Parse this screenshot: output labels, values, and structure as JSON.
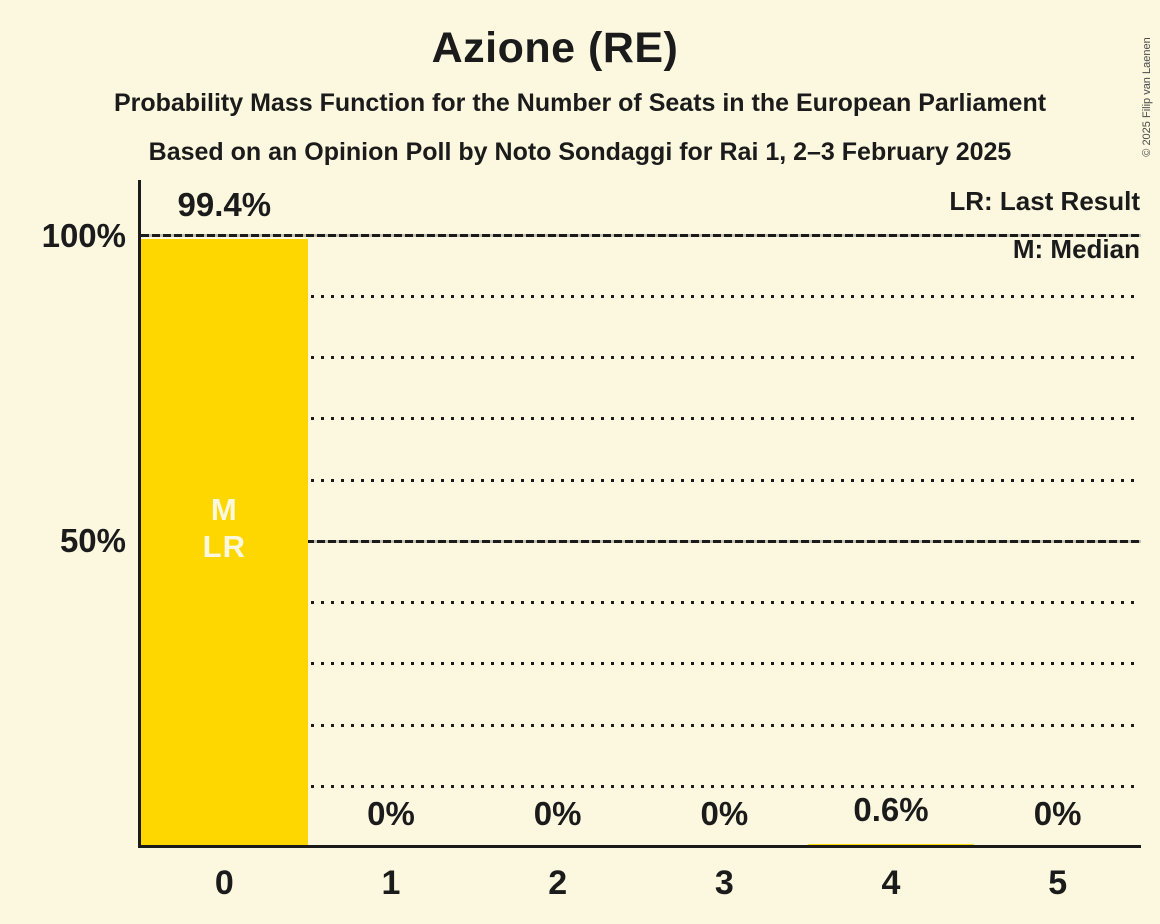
{
  "header": {
    "title": "Azione (RE)",
    "subtitle1": "Probability Mass Function for the Number of Seats in the European Parliament",
    "subtitle2": "Based on an Opinion Poll by Noto Sondaggi for Rai 1, 2–3 February 2025",
    "copyright": "© 2025 Filip van Laenen"
  },
  "legend": {
    "last_result": "LR: Last Result",
    "median": "M: Median"
  },
  "chart_data": {
    "type": "bar",
    "title": "Azione (RE)",
    "categories": [
      "0",
      "1",
      "2",
      "3",
      "4",
      "5"
    ],
    "values": [
      99.4,
      0,
      0,
      0,
      0.6,
      0
    ],
    "value_labels": [
      "99.4%",
      "0%",
      "0%",
      "0%",
      "0.6%",
      "0%"
    ],
    "ylim": [
      0,
      100
    ],
    "y_ticks": [
      {
        "value": 50,
        "label": "50%"
      },
      {
        "value": 100,
        "label": "100%"
      }
    ],
    "minor_gridline_step": 10,
    "major_gridline_step": 50,
    "grid": "dotted-horizontal",
    "legend_entries": [
      "LR: Last Result",
      "M: Median"
    ],
    "legend_position": "top-right",
    "annotations": [
      {
        "category": "0",
        "lines": [
          "M",
          "LR"
        ]
      }
    ],
    "colors": {
      "bar": "#FFD700",
      "background": "#FCF8DF",
      "text": "#1B1B1B",
      "annotation_text": "#FCF8DF"
    }
  }
}
